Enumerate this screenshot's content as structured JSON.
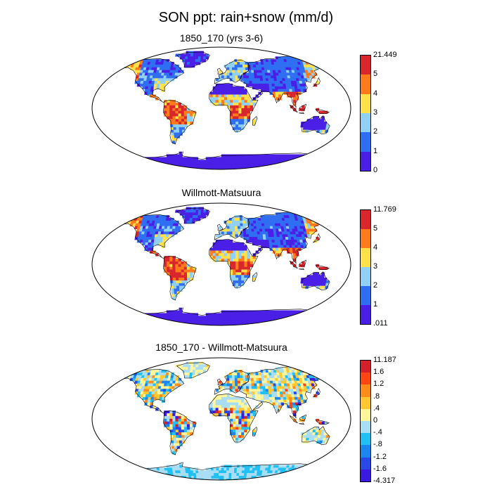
{
  "title": "SON ppt: rain+snow (mm/d)",
  "panels": [
    {
      "title": "1850_170 (yrs 3-6)",
      "kind": "precip",
      "colorbar": {
        "labels": [
          "0",
          "1",
          "2",
          "3",
          "4",
          "5",
          "21.449"
        ],
        "colors": [
          "#4a1ee6",
          "#2f6ef2",
          "#8fd0f4",
          "#ffe14a",
          "#ff7a1a",
          "#d8262c"
        ]
      }
    },
    {
      "title": "Willmott-Matsuura",
      "kind": "precip",
      "colorbar": {
        "labels": [
          ".011",
          "1",
          "2",
          "3",
          "4",
          "5",
          "11.769"
        ],
        "colors": [
          "#4a1ee6",
          "#2f6ef2",
          "#8fd0f4",
          "#ffe14a",
          "#ff7a1a",
          "#d8262c"
        ]
      }
    },
    {
      "title": "1850_170 - Willmott-Matsuura",
      "kind": "diff",
      "colorbar": {
        "labels": [
          "-4.317",
          "-1.6",
          "-1.2",
          "-.8",
          "-.4",
          "0",
          ".4",
          ".8",
          "1.2",
          "1.6",
          "11.187"
        ],
        "colors": [
          "#3a1ae0",
          "#2a48e6",
          "#1a86ee",
          "#22bff2",
          "#a9ddf4",
          "#fff59a",
          "#ffc830",
          "#ff8c18",
          "#ff4612",
          "#d4202a"
        ]
      }
    }
  ]
}
